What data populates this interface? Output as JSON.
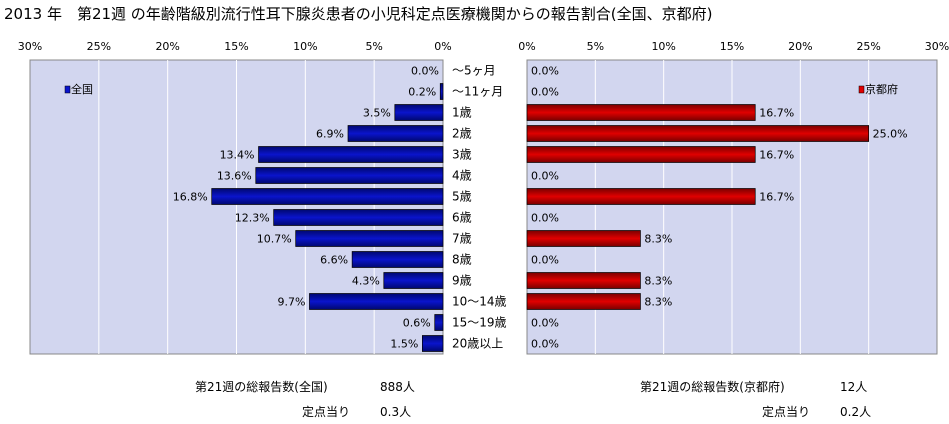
{
  "title": "2013 年　第21週 の年齢階級別流行性耳下腺炎患者の小児科定点医療機関からの報告割合(全国、京都府)",
  "colors": {
    "national": "#0a14cc",
    "kyoto": "#e00000",
    "plot_bg": "#d2d6ef",
    "label": "#000000"
  },
  "chart_data": [
    {
      "type": "bar",
      "orientation": "horizontal",
      "direction": "right-to-left",
      "legend": {
        "label": "全国",
        "placement": "top-left"
      },
      "xlim": [
        0,
        30
      ],
      "ticks": [
        "30%",
        "25%",
        "20%",
        "15%",
        "10%",
        "5%",
        "0%"
      ],
      "grid": true,
      "categories": [
        "～5ヶ月",
        "～11ヶ月",
        "1歳",
        "2歳",
        "3歳",
        "4歳",
        "5歳",
        "6歳",
        "7歳",
        "8歳",
        "9歳",
        "10～14歳",
        "15～19歳",
        "20歳以上"
      ],
      "values": [
        0.0,
        0.2,
        3.5,
        6.9,
        13.4,
        13.6,
        16.8,
        12.3,
        10.7,
        6.6,
        4.3,
        9.7,
        0.6,
        1.5
      ],
      "value_labels": [
        "0.0%",
        "0.2%",
        "3.5%",
        "6.9%",
        "13.4%",
        "13.6%",
        "16.8%",
        "12.3%",
        "10.7%",
        "6.6%",
        "4.3%",
        "9.7%",
        "0.6%",
        "1.5%"
      ]
    },
    {
      "type": "bar",
      "orientation": "horizontal",
      "direction": "left-to-right",
      "legend": {
        "label": "京都府",
        "placement": "top-right"
      },
      "xlim": [
        0,
        30
      ],
      "ticks": [
        "0%",
        "5%",
        "10%",
        "15%",
        "20%",
        "25%",
        "30%"
      ],
      "grid": true,
      "categories": [
        "～5ヶ月",
        "～11ヶ月",
        "1歳",
        "2歳",
        "3歳",
        "4歳",
        "5歳",
        "6歳",
        "7歳",
        "8歳",
        "9歳",
        "10～14歳",
        "15～19歳",
        "20歳以上"
      ],
      "values": [
        0.0,
        0.0,
        16.7,
        25.0,
        16.7,
        0.0,
        16.7,
        0.0,
        8.3,
        0.0,
        8.3,
        8.3,
        0.0,
        0.0
      ],
      "value_labels": [
        "0.0%",
        "0.0%",
        "16.7%",
        "25.0%",
        "16.7%",
        "0.0%",
        "16.7%",
        "0.0%",
        "8.3%",
        "0.0%",
        "8.3%",
        "8.3%",
        "0.0%",
        "0.0%"
      ]
    }
  ],
  "footer": {
    "national_total_label": "第21週の総報告数(全国)",
    "national_total_value": "888人",
    "national_per_site_label": "定点当り",
    "national_per_site_value": "0.3人",
    "kyoto_total_label": "第21週の総報告数(京都府)",
    "kyoto_total_value": "12人",
    "kyoto_per_site_label": "定点当り",
    "kyoto_per_site_value": "0.2人"
  }
}
